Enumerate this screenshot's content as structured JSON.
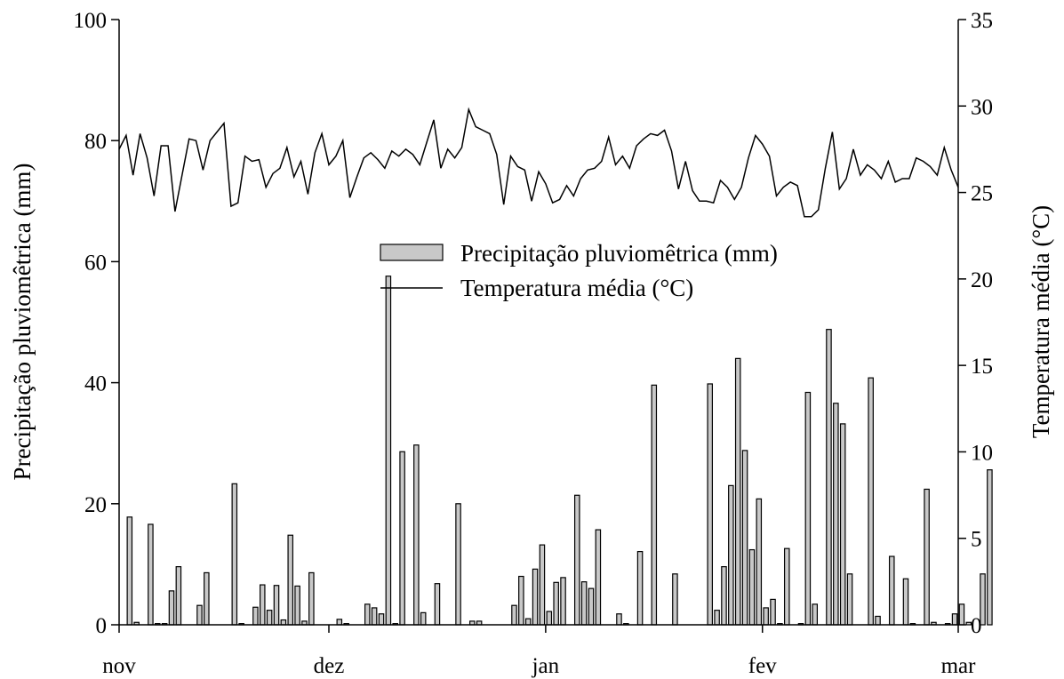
{
  "chart_data": {
    "type": "bar+line",
    "x_axis": {
      "tick_labels": [
        "nov",
        "dez",
        "jan",
        "fev",
        "mar"
      ]
    },
    "y_left": {
      "label": "Precipitação pluviomêtrica (mm)",
      "lim": [
        0,
        100
      ],
      "ticks": [
        0,
        20,
        40,
        60,
        80,
        100
      ]
    },
    "y_right": {
      "label": "Temperatura média (°C)",
      "lim": [
        0,
        35
      ],
      "ticks": [
        0,
        5,
        10,
        15,
        20,
        25,
        30,
        35
      ]
    },
    "legend": {
      "placement": "center",
      "entries": [
        {
          "name": "Precipitação pluviomêtrica (mm)",
          "kind": "bar"
        },
        {
          "name": "Temperatura média (°C)",
          "kind": "line"
        }
      ]
    },
    "colors": {
      "bar_fill": "#c8c8c8",
      "line": "#000000"
    },
    "series": [
      {
        "name": "Precipitação pluviomêtrica (mm)",
        "axis": "left",
        "points": [
          [
            1,
            17.8
          ],
          [
            2,
            0.4
          ],
          [
            4,
            16.6
          ],
          [
            5,
            0.2
          ],
          [
            6,
            0.2
          ],
          [
            7,
            5.6
          ],
          [
            8,
            9.6
          ],
          [
            11,
            3.2
          ],
          [
            12,
            8.6
          ],
          [
            16,
            23.3
          ],
          [
            17,
            0.2
          ],
          [
            19,
            2.9
          ],
          [
            20,
            6.6
          ],
          [
            21,
            2.4
          ],
          [
            22,
            6.5
          ],
          [
            23,
            0.8
          ],
          [
            24,
            14.8
          ],
          [
            25,
            6.4
          ],
          [
            26,
            0.6
          ],
          [
            27,
            8.6
          ],
          [
            31,
            0.9
          ],
          [
            32,
            0.2
          ],
          [
            35,
            3.4
          ],
          [
            36,
            2.8
          ],
          [
            37,
            1.8
          ],
          [
            38,
            57.6
          ],
          [
            39,
            0.2
          ],
          [
            40,
            28.6
          ],
          [
            42,
            29.7
          ],
          [
            43,
            2.0
          ],
          [
            45,
            6.8
          ],
          [
            48,
            20.0
          ],
          [
            50,
            0.6
          ],
          [
            51,
            0.6
          ],
          [
            56,
            3.2
          ],
          [
            57,
            8.0
          ],
          [
            58,
            1.0
          ],
          [
            59,
            9.2
          ],
          [
            60,
            13.2
          ],
          [
            61,
            2.2
          ],
          [
            62,
            7.0
          ],
          [
            63,
            7.8
          ],
          [
            65,
            21.4
          ],
          [
            66,
            7.1
          ],
          [
            67,
            6.0
          ],
          [
            68,
            15.7
          ],
          [
            71,
            1.8
          ],
          [
            72,
            0.2
          ],
          [
            74,
            12.1
          ],
          [
            76,
            39.6
          ],
          [
            79,
            8.4
          ],
          [
            84,
            39.8
          ],
          [
            85,
            2.4
          ],
          [
            86,
            9.6
          ],
          [
            87,
            23.0
          ],
          [
            88,
            44.0
          ],
          [
            89,
            28.8
          ],
          [
            90,
            12.4
          ],
          [
            91,
            20.8
          ],
          [
            92,
            2.8
          ],
          [
            93,
            4.2
          ],
          [
            94,
            0.2
          ],
          [
            95,
            12.6
          ],
          [
            97,
            0.2
          ],
          [
            98,
            38.4
          ],
          [
            99,
            3.4
          ],
          [
            101,
            48.8
          ],
          [
            102,
            36.6
          ],
          [
            103,
            33.2
          ],
          [
            104,
            8.4
          ],
          [
            107,
            40.8
          ],
          [
            108,
            1.4
          ],
          [
            110,
            11.3
          ],
          [
            112,
            7.6
          ],
          [
            113,
            0.2
          ],
          [
            115,
            22.4
          ],
          [
            116,
            0.4
          ],
          [
            118,
            0.2
          ],
          [
            119,
            1.8
          ],
          [
            120,
            3.4
          ],
          [
            121,
            0.4
          ],
          [
            123,
            8.4
          ],
          [
            124,
            25.6
          ]
        ]
      },
      {
        "name": "Temperatura média (°C)",
        "axis": "right",
        "points": [
          [
            0,
            27.5
          ],
          [
            1,
            28.3
          ],
          [
            2,
            26.0
          ],
          [
            3,
            28.4
          ],
          [
            4,
            27.0
          ],
          [
            5,
            24.8
          ],
          [
            6,
            27.7
          ],
          [
            7,
            27.7
          ],
          [
            8,
            23.9
          ],
          [
            9,
            26.0
          ],
          [
            10,
            28.1
          ],
          [
            11,
            28.0
          ],
          [
            12,
            26.3
          ],
          [
            13,
            28.0
          ],
          [
            14,
            28.5
          ],
          [
            15,
            29.0
          ],
          [
            16,
            24.2
          ],
          [
            17,
            24.4
          ],
          [
            18,
            27.1
          ],
          [
            19,
            26.8
          ],
          [
            20,
            26.9
          ],
          [
            21,
            25.3
          ],
          [
            22,
            26.1
          ],
          [
            23,
            26.4
          ],
          [
            24,
            27.6
          ],
          [
            25,
            25.9
          ],
          [
            26,
            26.8
          ],
          [
            27,
            24.9
          ],
          [
            28,
            27.3
          ],
          [
            29,
            28.4
          ],
          [
            30,
            26.6
          ],
          [
            31,
            27.1
          ],
          [
            32,
            28.0
          ],
          [
            33,
            24.7
          ],
          [
            34,
            25.9
          ],
          [
            35,
            27.0
          ],
          [
            36,
            27.3
          ],
          [
            37,
            26.9
          ],
          [
            38,
            26.4
          ],
          [
            39,
            27.4
          ],
          [
            40,
            27.1
          ],
          [
            41,
            27.5
          ],
          [
            42,
            27.2
          ],
          [
            43,
            26.6
          ],
          [
            44,
            27.9
          ],
          [
            45,
            29.2
          ],
          [
            46,
            26.4
          ],
          [
            47,
            27.5
          ],
          [
            48,
            27.0
          ],
          [
            49,
            27.6
          ],
          [
            50,
            29.8
          ],
          [
            51,
            28.8
          ],
          [
            52,
            28.6
          ],
          [
            53,
            28.4
          ],
          [
            54,
            27.2
          ],
          [
            55,
            24.3
          ],
          [
            56,
            27.1
          ],
          [
            57,
            26.5
          ],
          [
            58,
            26.3
          ],
          [
            59,
            24.5
          ],
          [
            60,
            26.2
          ],
          [
            61,
            25.5
          ],
          [
            62,
            24.4
          ],
          [
            63,
            24.6
          ],
          [
            64,
            25.4
          ],
          [
            65,
            24.8
          ],
          [
            66,
            25.8
          ],
          [
            67,
            26.3
          ],
          [
            68,
            26.4
          ],
          [
            69,
            26.8
          ],
          [
            70,
            28.2
          ],
          [
            71,
            26.6
          ],
          [
            72,
            27.1
          ],
          [
            73,
            26.4
          ],
          [
            74,
            27.7
          ],
          [
            75,
            28.1
          ],
          [
            76,
            28.4
          ],
          [
            77,
            28.3
          ],
          [
            78,
            28.6
          ],
          [
            79,
            27.4
          ],
          [
            80,
            25.2
          ],
          [
            81,
            26.8
          ],
          [
            82,
            25.1
          ],
          [
            83,
            24.5
          ],
          [
            84,
            24.5
          ],
          [
            85,
            24.4
          ],
          [
            86,
            25.7
          ],
          [
            87,
            25.3
          ],
          [
            88,
            24.6
          ],
          [
            89,
            25.3
          ],
          [
            90,
            27.0
          ],
          [
            91,
            28.3
          ],
          [
            92,
            27.8
          ],
          [
            93,
            27.1
          ],
          [
            94,
            24.8
          ],
          [
            95,
            25.3
          ],
          [
            96,
            25.6
          ],
          [
            97,
            25.4
          ],
          [
            98,
            23.6
          ],
          [
            99,
            23.6
          ],
          [
            100,
            24.0
          ],
          [
            101,
            26.4
          ],
          [
            102,
            28.5
          ],
          [
            103,
            25.2
          ],
          [
            104,
            25.8
          ],
          [
            105,
            27.5
          ],
          [
            106,
            26.0
          ],
          [
            107,
            26.6
          ],
          [
            108,
            26.3
          ],
          [
            109,
            25.8
          ],
          [
            110,
            26.8
          ],
          [
            111,
            25.6
          ],
          [
            112,
            25.8
          ],
          [
            113,
            25.8
          ],
          [
            114,
            27.0
          ],
          [
            115,
            26.8
          ],
          [
            116,
            26.5
          ],
          [
            117,
            26.0
          ],
          [
            118,
            27.6
          ],
          [
            119,
            26.3
          ],
          [
            120,
            25.3
          ]
        ]
      }
    ]
  }
}
